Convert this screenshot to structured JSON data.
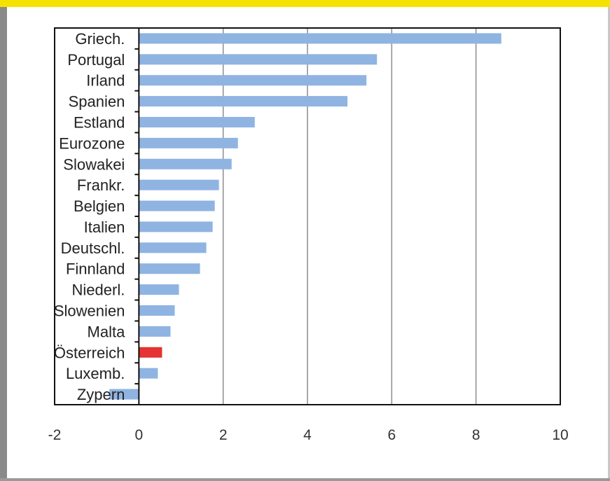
{
  "colors": {
    "accent": "#f5e200",
    "bar": "#8fb4e2",
    "highlight": "#e53232",
    "gridline": "#8c8c8c",
    "axis": "#111111"
  },
  "chart_data": {
    "type": "bar",
    "orientation": "horizontal",
    "categories": [
      "Griech.",
      "Portugal",
      "Irland",
      "Spanien",
      "Estland",
      "Eurozone",
      "Slowakei",
      "Frankr.",
      "Belgien",
      "Italien",
      "Deutschl.",
      "Finnland",
      "Niederl.",
      "Slowenien",
      "Malta",
      "Österreich",
      "Luxemb.",
      "Zypern"
    ],
    "values": [
      8.6,
      5.65,
      5.4,
      4.95,
      2.75,
      2.35,
      2.2,
      1.9,
      1.8,
      1.75,
      1.6,
      1.45,
      0.95,
      0.85,
      0.75,
      0.55,
      0.45,
      -0.7
    ],
    "highlight_category": "Österreich",
    "xlim": [
      -2,
      10
    ],
    "xticks": [
      -2,
      0,
      2,
      4,
      6,
      8,
      10
    ],
    "grid": "vertical",
    "title": "",
    "xlabel": "",
    "ylabel": ""
  }
}
